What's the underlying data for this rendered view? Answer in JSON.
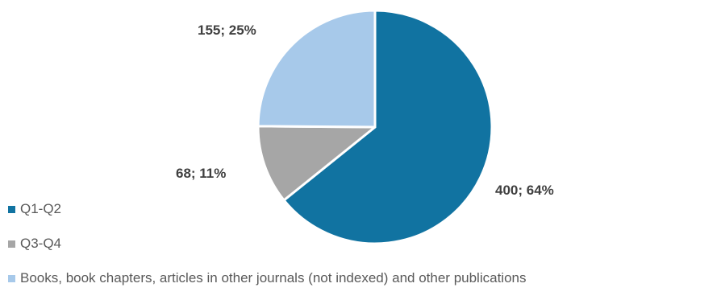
{
  "chart_data": {
    "type": "pie",
    "title": "",
    "categories": [
      "Q1-Q2",
      "Q3-Q4",
      "Books, book chapters, articles in other journals (not indexed) and other publications"
    ],
    "values": [
      400,
      68,
      155
    ],
    "percent_labels": [
      "64%",
      "11%",
      "25%"
    ],
    "data_labels": [
      "400; 64%",
      "68; 11%",
      "155; 25%"
    ],
    "colors": [
      "#1173a1",
      "#a6a6a6",
      "#a7c9ea"
    ],
    "slice_border_color": "#ffffff",
    "start_angle_deg": 0,
    "direction": "clockwise",
    "legend": {
      "position": "bottom-left",
      "entries": [
        "Q1-Q2",
        "Q3-Q4",
        "Books, book chapters, articles in other journals (not indexed) and other publications"
      ]
    }
  }
}
